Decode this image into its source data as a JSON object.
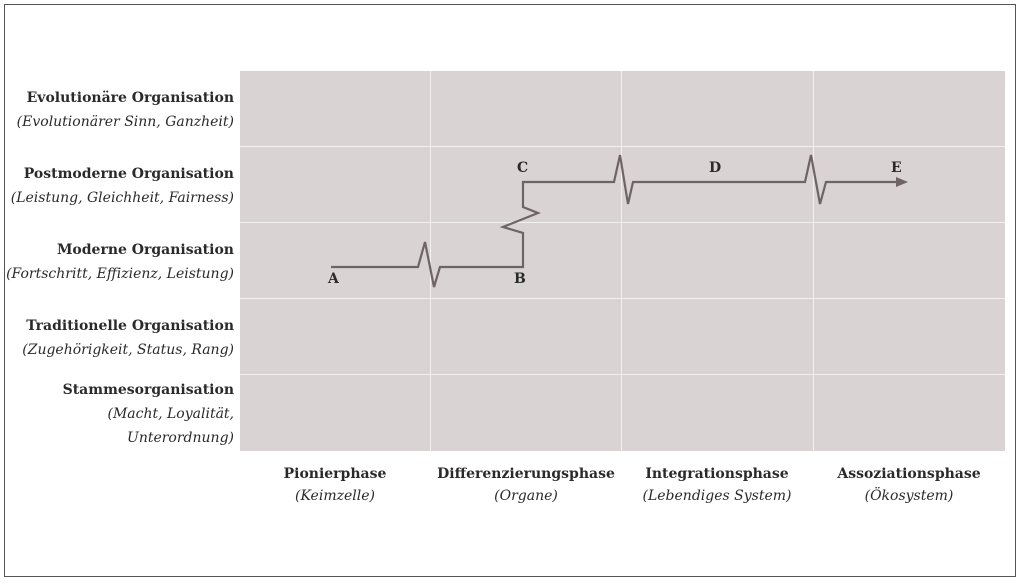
{
  "rows": [
    {
      "title": "Evolutionäre Organisation",
      "subtitle": "(Evolutionärer Sinn, Ganzheit)"
    },
    {
      "title": "Postmoderne Organisation",
      "subtitle": "(Leistung, Gleichheit, Fairness)"
    },
    {
      "title": "Moderne Organisation",
      "subtitle": "(Fortschritt, Effizienz, Leistung)"
    },
    {
      "title": "Traditionelle Organisation",
      "subtitle": "(Zugehörigkeit, Status, Rang)"
    },
    {
      "title": "Stammesorganisation",
      "subtitle_line1": "(Macht, Loyalität,",
      "subtitle_line2": "Unterordnung)"
    }
  ],
  "columns": [
    {
      "title": "Pionierphase",
      "subtitle": "(Keimzelle)"
    },
    {
      "title": "Differenzierungsphase",
      "subtitle": "(Organe)"
    },
    {
      "title": "Integrationsphase",
      "subtitle": "(Lebendiges System)"
    },
    {
      "title": "Assoziationsphase",
      "subtitle": "(Ökosystem)"
    }
  ],
  "points": {
    "a": "A",
    "b": "B",
    "c": "C",
    "d": "D",
    "e": "E"
  },
  "colors": {
    "grid_bg": "#d9d3d3",
    "path": "#6e6464",
    "grid_line": "#f3f0f0"
  }
}
